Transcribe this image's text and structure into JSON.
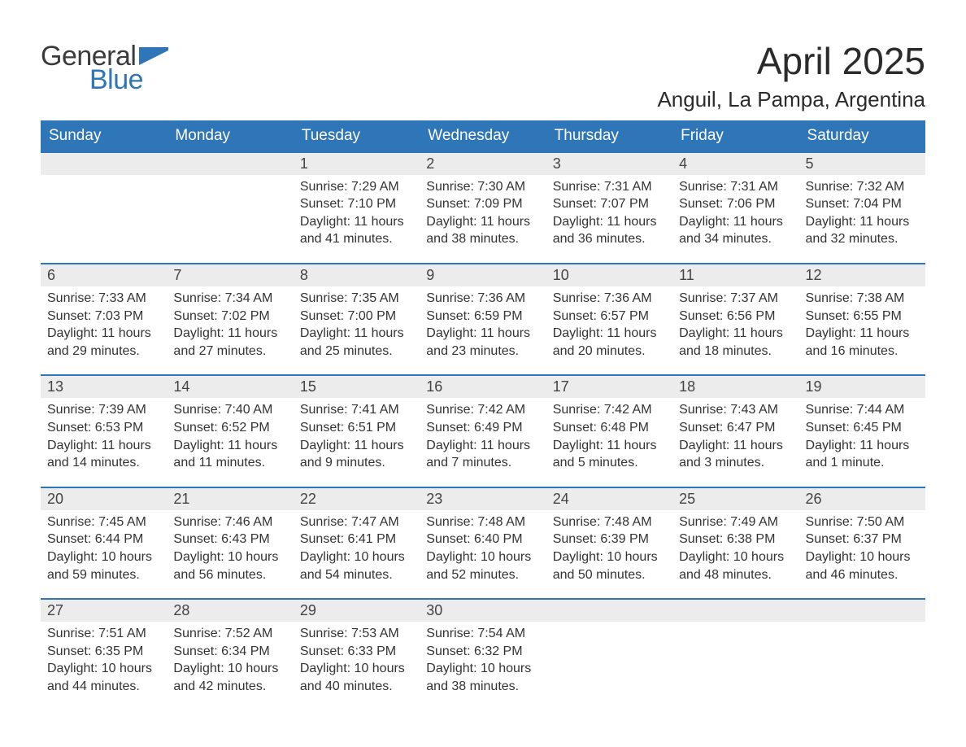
{
  "logo": {
    "text1": "General",
    "text2": "Blue",
    "flag_color": "#2f76b8"
  },
  "title": "April 2025",
  "location": "Anguil, La Pampa, Argentina",
  "colors": {
    "header_bg": "#2f76b8",
    "header_text": "#ffffff",
    "daynum_bg": "#ececec",
    "row_border": "#2f76b8",
    "body_text": "#333333"
  },
  "weekdays": [
    "Sunday",
    "Monday",
    "Tuesday",
    "Wednesday",
    "Thursday",
    "Friday",
    "Saturday"
  ],
  "weeks": [
    [
      null,
      null,
      {
        "d": "1",
        "sunrise": "7:29 AM",
        "sunset": "7:10 PM",
        "daylight": "11 hours and 41 minutes."
      },
      {
        "d": "2",
        "sunrise": "7:30 AM",
        "sunset": "7:09 PM",
        "daylight": "11 hours and 38 minutes."
      },
      {
        "d": "3",
        "sunrise": "7:31 AM",
        "sunset": "7:07 PM",
        "daylight": "11 hours and 36 minutes."
      },
      {
        "d": "4",
        "sunrise": "7:31 AM",
        "sunset": "7:06 PM",
        "daylight": "11 hours and 34 minutes."
      },
      {
        "d": "5",
        "sunrise": "7:32 AM",
        "sunset": "7:04 PM",
        "daylight": "11 hours and 32 minutes."
      }
    ],
    [
      {
        "d": "6",
        "sunrise": "7:33 AM",
        "sunset": "7:03 PM",
        "daylight": "11 hours and 29 minutes."
      },
      {
        "d": "7",
        "sunrise": "7:34 AM",
        "sunset": "7:02 PM",
        "daylight": "11 hours and 27 minutes."
      },
      {
        "d": "8",
        "sunrise": "7:35 AM",
        "sunset": "7:00 PM",
        "daylight": "11 hours and 25 minutes."
      },
      {
        "d": "9",
        "sunrise": "7:36 AM",
        "sunset": "6:59 PM",
        "daylight": "11 hours and 23 minutes."
      },
      {
        "d": "10",
        "sunrise": "7:36 AM",
        "sunset": "6:57 PM",
        "daylight": "11 hours and 20 minutes."
      },
      {
        "d": "11",
        "sunrise": "7:37 AM",
        "sunset": "6:56 PM",
        "daylight": "11 hours and 18 minutes."
      },
      {
        "d": "12",
        "sunrise": "7:38 AM",
        "sunset": "6:55 PM",
        "daylight": "11 hours and 16 minutes."
      }
    ],
    [
      {
        "d": "13",
        "sunrise": "7:39 AM",
        "sunset": "6:53 PM",
        "daylight": "11 hours and 14 minutes."
      },
      {
        "d": "14",
        "sunrise": "7:40 AM",
        "sunset": "6:52 PM",
        "daylight": "11 hours and 11 minutes."
      },
      {
        "d": "15",
        "sunrise": "7:41 AM",
        "sunset": "6:51 PM",
        "daylight": "11 hours and 9 minutes."
      },
      {
        "d": "16",
        "sunrise": "7:42 AM",
        "sunset": "6:49 PM",
        "daylight": "11 hours and 7 minutes."
      },
      {
        "d": "17",
        "sunrise": "7:42 AM",
        "sunset": "6:48 PM",
        "daylight": "11 hours and 5 minutes."
      },
      {
        "d": "18",
        "sunrise": "7:43 AM",
        "sunset": "6:47 PM",
        "daylight": "11 hours and 3 minutes."
      },
      {
        "d": "19",
        "sunrise": "7:44 AM",
        "sunset": "6:45 PM",
        "daylight": "11 hours and 1 minute."
      }
    ],
    [
      {
        "d": "20",
        "sunrise": "7:45 AM",
        "sunset": "6:44 PM",
        "daylight": "10 hours and 59 minutes."
      },
      {
        "d": "21",
        "sunrise": "7:46 AM",
        "sunset": "6:43 PM",
        "daylight": "10 hours and 56 minutes."
      },
      {
        "d": "22",
        "sunrise": "7:47 AM",
        "sunset": "6:41 PM",
        "daylight": "10 hours and 54 minutes."
      },
      {
        "d": "23",
        "sunrise": "7:48 AM",
        "sunset": "6:40 PM",
        "daylight": "10 hours and 52 minutes."
      },
      {
        "d": "24",
        "sunrise": "7:48 AM",
        "sunset": "6:39 PM",
        "daylight": "10 hours and 50 minutes."
      },
      {
        "d": "25",
        "sunrise": "7:49 AM",
        "sunset": "6:38 PM",
        "daylight": "10 hours and 48 minutes."
      },
      {
        "d": "26",
        "sunrise": "7:50 AM",
        "sunset": "6:37 PM",
        "daylight": "10 hours and 46 minutes."
      }
    ],
    [
      {
        "d": "27",
        "sunrise": "7:51 AM",
        "sunset": "6:35 PM",
        "daylight": "10 hours and 44 minutes."
      },
      {
        "d": "28",
        "sunrise": "7:52 AM",
        "sunset": "6:34 PM",
        "daylight": "10 hours and 42 minutes."
      },
      {
        "d": "29",
        "sunrise": "7:53 AM",
        "sunset": "6:33 PM",
        "daylight": "10 hours and 40 minutes."
      },
      {
        "d": "30",
        "sunrise": "7:54 AM",
        "sunset": "6:32 PM",
        "daylight": "10 hours and 38 minutes."
      },
      null,
      null,
      null
    ]
  ],
  "labels": {
    "sunrise": "Sunrise: ",
    "sunset": "Sunset: ",
    "daylight": "Daylight: "
  }
}
